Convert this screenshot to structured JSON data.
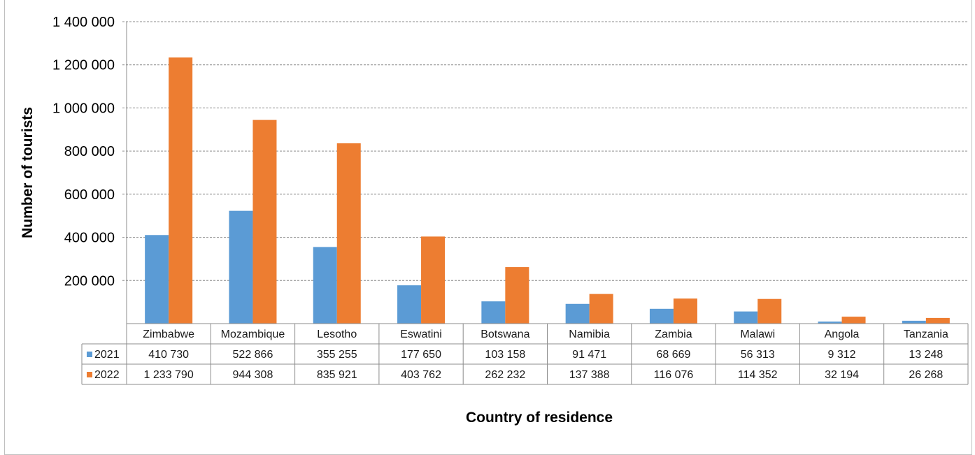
{
  "chart_data": {
    "type": "bar",
    "categories": [
      "Zimbabwe",
      "Mozambique",
      "Lesotho",
      "Eswatini",
      "Botswana",
      "Namibia",
      "Zambia",
      "Malawi",
      "Angola",
      "Tanzania"
    ],
    "series": [
      {
        "name": "2021",
        "color": "#5b9bd5",
        "values": [
          410730,
          522866,
          355255,
          177650,
          103158,
          91471,
          68669,
          56313,
          9312,
          13248
        ],
        "labels": [
          "410 730",
          "522 866",
          "355 255",
          "177 650",
          "103 158",
          "91 471",
          "68 669",
          "56 313",
          "9 312",
          "13 248"
        ]
      },
      {
        "name": "2022",
        "color": "#ed7d31",
        "values": [
          1233790,
          944308,
          835921,
          403762,
          262232,
          137388,
          116076,
          114352,
          32194,
          26268
        ],
        "labels": [
          "1 233 790",
          "944 308",
          "835 921",
          "403 762",
          "262 232",
          "137 388",
          "116 076",
          "114 352",
          "32 194",
          "26 268"
        ]
      }
    ],
    "xlabel": "Country of residence",
    "ylabel": "Number of tourists",
    "ylim": [
      0,
      1400000
    ],
    "yticks": [
      200000,
      400000,
      600000,
      800000,
      1000000,
      1200000,
      1400000
    ],
    "ytick_labels": [
      "200 000",
      "400 000",
      "600 000",
      "800 000",
      "1 000 000",
      "1 200 000",
      "1 400 000"
    ],
    "grid": true,
    "legend": "data-table"
  }
}
